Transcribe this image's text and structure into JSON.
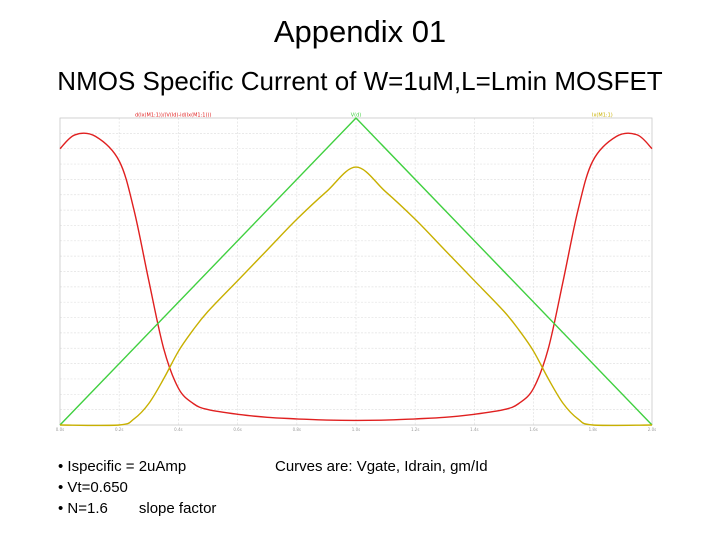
{
  "slide": {
    "title": "Appendix 01",
    "subtitle": "NMOS Specific Current of W=1uM,L=Lmin MOSFET",
    "bullets": [
      "• Ispecific = 2uAmp",
      "• Vt=0.650",
      "• N=1.6"
    ],
    "slope_note": "slope factor",
    "curves_note": "Curves are: Vgate, Idrain, gm/Id"
  },
  "chart_data": {
    "type": "line",
    "title": "",
    "xlabel": "",
    "ylabel": "",
    "xlim": [
      0,
      2
    ],
    "grid": true,
    "x_ticks": [
      "0.0s",
      "0.2s",
      "0.4s",
      "0.6s",
      "0.8s",
      "1.0s",
      "1.2s",
      "1.4s",
      "1.6s",
      "1.8s",
      "2.0s"
    ],
    "legend": [
      {
        "text": "d(Ix(M1:1))/(V(Id)-id(Ix(M1:1)))",
        "color": "#e02020",
        "placement": "top-left"
      },
      {
        "text": "V(d)",
        "color": "#40d040",
        "placement": "top-center"
      },
      {
        "text": "Ix(M1:1)",
        "color": "#c8b000",
        "placement": "top-right"
      }
    ],
    "series": [
      {
        "color": "#e02020",
        "x": [
          0,
          0.05,
          0.12,
          0.2,
          0.25,
          0.3,
          0.35,
          0.4,
          0.45,
          0.5,
          0.6,
          0.7,
          0.8,
          0.9,
          1.0,
          1.1,
          1.2,
          1.3,
          1.4,
          1.5,
          1.55,
          1.6,
          1.65,
          1.7,
          1.75,
          1.8,
          1.88,
          1.95,
          2.0
        ],
        "values": [
          0.9,
          0.945,
          0.94,
          0.86,
          0.7,
          0.47,
          0.25,
          0.12,
          0.07,
          0.05,
          0.035,
          0.025,
          0.02,
          0.016,
          0.015,
          0.016,
          0.02,
          0.025,
          0.035,
          0.05,
          0.07,
          0.12,
          0.25,
          0.47,
          0.7,
          0.86,
          0.94,
          0.945,
          0.9
        ]
      },
      {
        "color": "#40d040",
        "x": [
          0,
          1.0,
          2.0
        ],
        "values": [
          0.0,
          1.0,
          0.0
        ]
      },
      {
        "color": "#c8b000",
        "x": [
          0,
          0.2,
          0.25,
          0.3,
          0.35,
          0.4,
          0.45,
          0.5,
          0.6,
          0.7,
          0.8,
          0.9,
          1.0,
          1.1,
          1.2,
          1.3,
          1.4,
          1.5,
          1.55,
          1.6,
          1.65,
          1.7,
          1.75,
          1.8,
          2.0
        ],
        "values": [
          0.0,
          0.0,
          0.02,
          0.07,
          0.15,
          0.24,
          0.31,
          0.37,
          0.47,
          0.57,
          0.67,
          0.76,
          0.84,
          0.76,
          0.67,
          0.57,
          0.47,
          0.37,
          0.31,
          0.24,
          0.15,
          0.07,
          0.02,
          0.0,
          0.0
        ]
      }
    ]
  }
}
